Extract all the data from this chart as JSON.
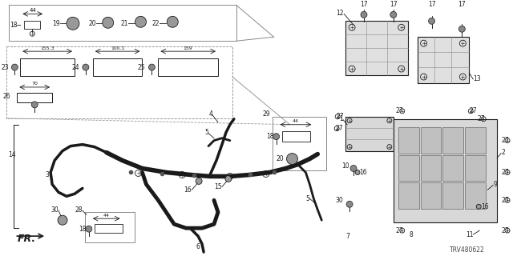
{
  "bg_color": "#ffffff",
  "diagram_code": "TRV480622",
  "line_color": "#1a1a1a",
  "text_color": "#1a1a1a",
  "box_color": "#555555",
  "figsize": [
    6.4,
    3.2
  ],
  "dpi": 100
}
